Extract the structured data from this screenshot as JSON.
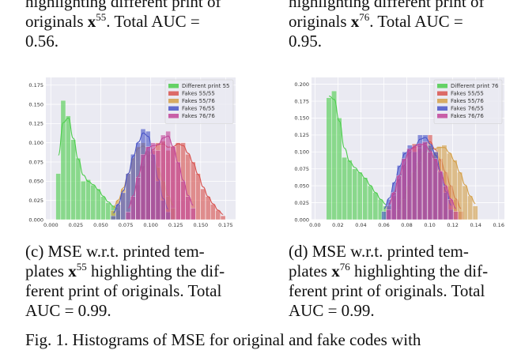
{
  "captions": {
    "top_left": {
      "line1": "highlighting different print of",
      "line2_pre": "originals ",
      "sym": "x",
      "sup": "55",
      "line2_post": ". Total AUC =",
      "line3": "0.56."
    },
    "top_right": {
      "line1": "highlighting different print of",
      "line2_pre": "originals ",
      "sym": "x",
      "sup": "76",
      "line2_post": ". Total AUC =",
      "line3": "0.95."
    },
    "c": {
      "line1": "(c) MSE w.r.t. printed tem-",
      "line2_pre": "plates ",
      "sym": "x",
      "sup": "55",
      "line2_post": " highlighting the dif-",
      "line3": "ferent print of originals. Total",
      "line4": "AUC = 0.99."
    },
    "d": {
      "line1": "(d) MSE w.r.t. printed tem-",
      "line2_pre": "plates ",
      "sym": "x",
      "sup": "76",
      "line2_post": " highlighting the dif-",
      "line3": "ferent print of originals. Total",
      "line4": "AUC = 0.99."
    },
    "bottom": "Fig. 1. Histograms of MSE for original and fake codes with"
  },
  "chart_data": [
    {
      "type": "bar",
      "name": "c",
      "legend_position": "top-right",
      "xlim": [
        -0.005,
        0.185
      ],
      "ylim": [
        0,
        0.185
      ],
      "x_ticks": [
        "0.000",
        "0.025",
        "0.050",
        "0.075",
        "0.100",
        "0.125",
        "0.150",
        "0.175"
      ],
      "x_tick_values": [
        0,
        0.025,
        0.05,
        0.075,
        0.1,
        0.125,
        0.15,
        0.175
      ],
      "y_ticks": [
        "0.000",
        "0.025",
        "0.050",
        "0.075",
        "0.100",
        "0.125",
        "0.150",
        "0.175"
      ],
      "y_tick_values": [
        0,
        0.025,
        0.05,
        0.075,
        0.1,
        0.125,
        0.15,
        0.175
      ],
      "bin_width": 0.005,
      "series": [
        {
          "name": "Different print 55",
          "color": "#4dcd4d",
          "start": 0.005,
          "values": [
            0.06,
            0.155,
            0.135,
            0.104,
            0.08,
            0.05,
            0.052,
            0.045,
            0.04,
            0.03,
            0.022,
            0.018,
            0.012
          ]
        },
        {
          "name": "Fakes 55/55",
          "color": "#d9534f",
          "start": 0.085,
          "values": [
            0.045,
            0.07,
            0.085,
            0.09,
            0.1,
            0.102,
            0.09,
            0.095,
            0.1,
            0.1,
            0.085,
            0.075,
            0.06,
            0.04,
            0.03,
            0.02,
            0.012,
            0.005
          ]
        },
        {
          "name": "Fakes 55/76",
          "color": "#d4a04a",
          "start": 0.06,
          "values": [
            0.012,
            0.025,
            0.04,
            0.06,
            0.08,
            0.095,
            0.1,
            0.088,
            0.078,
            0.068,
            0.05,
            0.03,
            0.015
          ]
        },
        {
          "name": "Fakes 76/55",
          "color": "#4a55c8",
          "start": 0.06,
          "values": [
            0.005,
            0.02,
            0.035,
            0.06,
            0.085,
            0.1,
            0.118,
            0.115,
            0.085,
            0.05,
            0.025,
            0.01
          ]
        },
        {
          "name": "Fakes 76/76",
          "color": "#c2479a",
          "start": 0.075,
          "values": [
            0.01,
            0.03,
            0.055,
            0.085,
            0.095,
            0.1,
            0.09,
            0.11,
            0.115,
            0.095,
            0.075,
            0.05,
            0.03,
            0.015
          ]
        }
      ]
    },
    {
      "type": "bar",
      "name": "d",
      "legend_position": "top-right",
      "xlim": [
        -0.003,
        0.165
      ],
      "ylim": [
        0,
        0.21
      ],
      "x_ticks": [
        "0.00",
        "0.02",
        "0.04",
        "0.06",
        "0.08",
        "0.10",
        "0.12",
        "0.14",
        "0.16"
      ],
      "x_tick_values": [
        0,
        0.02,
        0.04,
        0.06,
        0.08,
        0.1,
        0.12,
        0.14,
        0.16
      ],
      "y_ticks": [
        "0.000",
        "0.025",
        "0.050",
        "0.075",
        "0.100",
        "0.125",
        "0.150",
        "0.175",
        "0.200"
      ],
      "y_tick_values": [
        0,
        0.025,
        0.05,
        0.075,
        0.1,
        0.125,
        0.15,
        0.175,
        0.2
      ],
      "bin_width": 0.0045,
      "series": [
        {
          "name": "Different print 76",
          "color": "#4dcd4d",
          "start": 0.01,
          "values": [
            0.18,
            0.19,
            0.15,
            0.092,
            0.088,
            0.075,
            0.07,
            0.062,
            0.05,
            0.04,
            0.03,
            0.02
          ]
        },
        {
          "name": "Fakes 55/55",
          "color": "#d9534f",
          "start": 0.062,
          "values": [
            0.02,
            0.035,
            0.06,
            0.08,
            0.1,
            0.112,
            0.105,
            0.11,
            0.125,
            0.1,
            0.09,
            0.07,
            0.05,
            0.03,
            0.012
          ]
        },
        {
          "name": "Fakes 55/76",
          "color": "#d4a04a",
          "start": 0.07,
          "values": [
            0.015,
            0.03,
            0.05,
            0.07,
            0.085,
            0.1,
            0.11,
            0.1,
            0.108,
            0.11,
            0.098,
            0.088,
            0.07,
            0.05,
            0.035,
            0.02
          ]
        },
        {
          "name": "Fakes 76/55",
          "color": "#4a55c8",
          "start": 0.058,
          "values": [
            0.012,
            0.03,
            0.055,
            0.08,
            0.1,
            0.11,
            0.1,
            0.125,
            0.125,
            0.11,
            0.1,
            0.07,
            0.04,
            0.015
          ]
        },
        {
          "name": "Fakes 76/76",
          "color": "#c2479a",
          "start": 0.062,
          "values": [
            0.015,
            0.04,
            0.065,
            0.09,
            0.105,
            0.108,
            0.112,
            0.115,
            0.1,
            0.09,
            0.072,
            0.05,
            0.03,
            0.012
          ]
        }
      ]
    }
  ]
}
